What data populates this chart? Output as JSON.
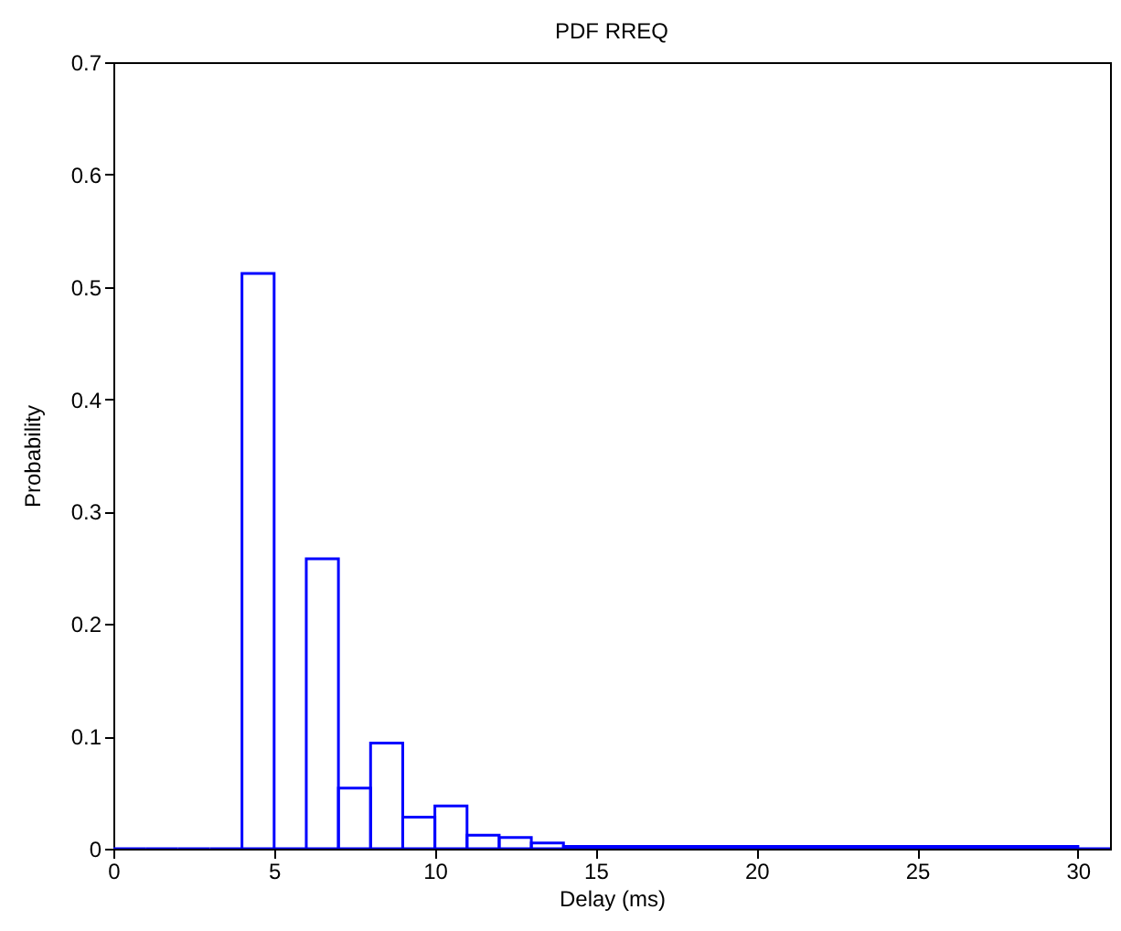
{
  "chart_data": {
    "type": "histogram",
    "title": "PDF RREQ",
    "xlabel": "Delay (ms)",
    "ylabel": "Probability",
    "bins": [
      0,
      1,
      2,
      3,
      4,
      5,
      6,
      7,
      8,
      9,
      10,
      11,
      12,
      13,
      14,
      15,
      16,
      17,
      18,
      19,
      20,
      21,
      22,
      23,
      24,
      25,
      26,
      27,
      28,
      29,
      30,
      31
    ],
    "values": [
      0,
      0,
      0,
      0,
      0.512,
      0,
      0.258,
      0.054,
      0.094,
      0.028,
      0.038,
      0.012,
      0.01,
      0.005,
      0.002,
      0.002,
      0.002,
      0.002,
      0.002,
      0.002,
      0.002,
      0.002,
      0.002,
      0.002,
      0.002,
      0.002,
      0.002,
      0.002,
      0.002,
      0.002,
      0
    ],
    "color": "#0000ff",
    "xlim": [
      0,
      31
    ],
    "ylim": [
      0,
      0.7
    ],
    "xticks": [
      0,
      5,
      10,
      15,
      20,
      25,
      30
    ],
    "yticks": [
      0,
      0.1,
      0.2,
      0.3,
      0.4,
      0.5,
      0.6,
      0.7
    ],
    "grid": false
  }
}
